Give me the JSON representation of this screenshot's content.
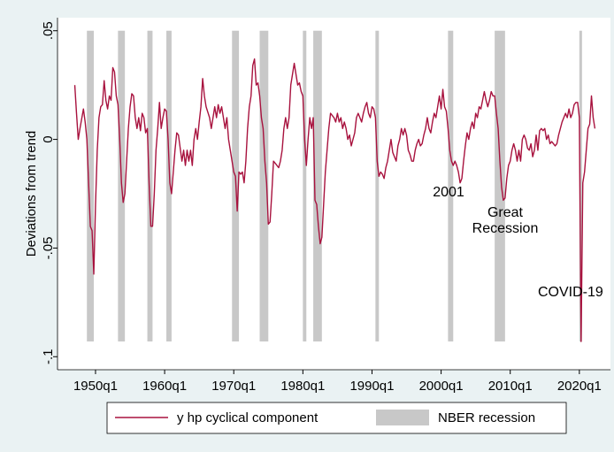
{
  "chart_data": {
    "type": "line",
    "y_label": "Deviations from trend",
    "xlim": [
      1944.5,
      2024.5
    ],
    "ylim": [
      -0.106,
      0.056
    ],
    "xticks": [
      {
        "value": 1950,
        "label": "1950q1"
      },
      {
        "value": 1960,
        "label": "1960q1"
      },
      {
        "value": 1970,
        "label": "1970q1"
      },
      {
        "value": 1980,
        "label": "1980q1"
      },
      {
        "value": 1990,
        "label": "1990q1"
      },
      {
        "value": 2000,
        "label": "2000q1"
      },
      {
        "value": 2010,
        "label": "2010q1"
      },
      {
        "value": 2020,
        "label": "2020q1"
      }
    ],
    "yticks": [
      {
        "value": 0.05,
        "label": ".05"
      },
      0,
      {
        "value": -0.05,
        "label": "-.05"
      },
      {
        "value": -0.1,
        "label": "-.1"
      }
    ],
    "grid": false,
    "legend": "bottom",
    "series": [
      {
        "name": "y hp cyclical component",
        "color": "#a8123e",
        "x": [
          1947.0,
          1947.25,
          1947.5,
          1947.75,
          1948.25,
          1948.5,
          1948.75,
          1949.0,
          1949.25,
          1949.5,
          1949.75,
          1950.0,
          1950.25,
          1950.5,
          1950.75,
          1951.0,
          1951.25,
          1951.5,
          1951.75,
          1952.0,
          1952.25,
          1952.5,
          1952.75,
          1953.0,
          1953.25,
          1953.5,
          1953.75,
          1954.0,
          1954.25,
          1954.5,
          1954.75,
          1955.0,
          1955.25,
          1955.5,
          1955.75,
          1956.0,
          1956.25,
          1956.5,
          1956.75,
          1957.0,
          1957.25,
          1957.5,
          1957.75,
          1958.0,
          1958.25,
          1958.5,
          1958.75,
          1959.0,
          1959.25,
          1959.5,
          1959.75,
          1960.0,
          1960.25,
          1960.5,
          1960.75,
          1961.0,
          1961.25,
          1961.5,
          1961.75,
          1962.0,
          1962.5,
          1962.75,
          1963.0,
          1963.25,
          1963.5,
          1963.75,
          1964.0,
          1964.25,
          1964.5,
          1964.75,
          1965.0,
          1965.25,
          1965.5,
          1965.75,
          1966.0,
          1966.5,
          1966.75,
          1967.0,
          1967.25,
          1967.5,
          1967.75,
          1968.0,
          1968.25,
          1968.5,
          1968.75,
          1969.0,
          1969.25,
          1969.5,
          1969.75,
          1970.0,
          1970.25,
          1970.5,
          1970.75,
          1971.0,
          1971.25,
          1971.5,
          1971.75,
          1972.0,
          1972.25,
          1972.5,
          1972.75,
          1973.0,
          1973.25,
          1973.5,
          1973.75,
          1974.0,
          1974.25,
          1974.5,
          1974.75,
          1975.0,
          1975.25,
          1975.5,
          1975.75,
          1976.0,
          1976.5,
          1976.75,
          1977.0,
          1977.25,
          1977.5,
          1977.75,
          1978.0,
          1978.25,
          1978.5,
          1978.75,
          1979.0,
          1979.25,
          1979.5,
          1979.75,
          1980.0,
          1980.25,
          1980.5,
          1980.75,
          1981.0,
          1981.25,
          1981.5,
          1981.75,
          1982.0,
          1982.25,
          1982.5,
          1982.75,
          1983.0,
          1983.25,
          1983.5,
          1983.75,
          1984.0,
          1984.5,
          1984.75,
          1985.0,
          1985.25,
          1985.5,
          1985.75,
          1986.0,
          1986.25,
          1986.5,
          1986.75,
          1987.0,
          1987.25,
          1987.5,
          1987.75,
          1988.0,
          1988.25,
          1988.5,
          1988.75,
          1989.0,
          1989.25,
          1989.5,
          1989.75,
          1990.0,
          1990.25,
          1990.5,
          1990.75,
          1991.0,
          1991.25,
          1991.5,
          1991.75,
          1992.0,
          1992.25,
          1992.5,
          1992.75,
          1993.0,
          1993.25,
          1993.5,
          1993.75,
          1994.0,
          1994.25,
          1994.5,
          1994.75,
          1995.0,
          1995.25,
          1995.5,
          1995.75,
          1996.0,
          1996.25,
          1996.5,
          1996.75,
          1997.0,
          1997.25,
          1997.5,
          1997.75,
          1998.0,
          1998.25,
          1998.5,
          1998.75,
          1999.0,
          1999.25,
          1999.5,
          1999.75,
          2000.0,
          2000.25,
          2000.5,
          2000.75,
          2001.0,
          2001.25,
          2001.5,
          2001.75,
          2002.0,
          2002.25,
          2002.5,
          2002.75,
          2003.0,
          2003.25,
          2003.5,
          2003.75,
          2004.0,
          2004.25,
          2004.5,
          2004.75,
          2005.0,
          2005.25,
          2005.5,
          2005.75,
          2006.0,
          2006.25,
          2006.5,
          2006.75,
          2007.0,
          2007.25,
          2007.5,
          2007.75,
          2008.0,
          2008.25,
          2008.5,
          2008.75,
          2009.0,
          2009.25,
          2009.5,
          2009.75,
          2010.0,
          2010.25,
          2010.5,
          2010.75,
          2011.0,
          2011.25,
          2011.5,
          2011.75,
          2012.0,
          2012.25,
          2012.5,
          2012.75,
          2013.0,
          2013.25,
          2013.5,
          2013.75,
          2014.0,
          2014.25,
          2014.5,
          2014.75,
          2015.0,
          2015.25,
          2015.5,
          2015.75,
          2016.0,
          2016.5,
          2016.75,
          2017.0,
          2017.25,
          2017.5,
          2017.75,
          2018.0,
          2018.25,
          2018.5,
          2018.75,
          2019.0,
          2019.25,
          2019.5,
          2019.75,
          2020.0,
          2020.25,
          2020.5,
          2020.75,
          2021.0,
          2021.25,
          2021.5,
          2021.75,
          2022.0,
          2022.25
        ],
        "values": [
          0.025,
          0.012,
          0.0,
          0.005,
          0.014,
          0.008,
          0.0,
          -0.02,
          -0.04,
          -0.042,
          -0.062,
          -0.03,
          -0.005,
          0.01,
          0.015,
          0.016,
          0.027,
          0.018,
          0.014,
          0.02,
          0.018,
          0.033,
          0.031,
          0.02,
          0.016,
          0.0,
          -0.02,
          -0.029,
          -0.025,
          -0.01,
          0.005,
          0.015,
          0.021,
          0.02,
          0.01,
          0.005,
          0.01,
          0.004,
          0.012,
          0.01,
          0.003,
          0.005,
          -0.02,
          -0.04,
          -0.04,
          -0.025,
          -0.005,
          0.005,
          0.017,
          0.005,
          0.01,
          0.014,
          0.013,
          0.0,
          -0.02,
          -0.025,
          -0.015,
          -0.005,
          0.003,
          0.002,
          -0.01,
          -0.005,
          -0.012,
          -0.005,
          -0.01,
          -0.005,
          -0.012,
          0.0,
          0.005,
          0.0,
          0.008,
          0.015,
          0.028,
          0.02,
          0.015,
          0.01,
          0.005,
          0.01,
          0.015,
          0.01,
          0.016,
          0.012,
          0.015,
          0.01,
          0.005,
          0.01,
          0.0,
          -0.005,
          -0.01,
          -0.015,
          -0.017,
          -0.033,
          -0.015,
          -0.016,
          -0.015,
          -0.02,
          -0.01,
          0.005,
          0.015,
          0.02,
          0.034,
          0.037,
          0.025,
          0.026,
          0.02,
          0.01,
          0.005,
          -0.01,
          -0.02,
          -0.039,
          -0.038,
          -0.025,
          -0.01,
          -0.011,
          -0.013,
          -0.01,
          -0.005,
          0.005,
          0.01,
          0.005,
          0.01,
          0.025,
          0.03,
          0.035,
          0.03,
          0.025,
          0.026,
          0.022,
          0.02,
          0.0,
          -0.012,
          0.0,
          0.01,
          0.005,
          0.01,
          -0.028,
          -0.03,
          -0.04,
          -0.048,
          -0.045,
          -0.03,
          -0.015,
          -0.005,
          0.005,
          0.012,
          0.01,
          0.008,
          0.012,
          0.008,
          0.01,
          0.005,
          0.008,
          0.005,
          0.0,
          0.002,
          -0.003,
          0.0,
          0.003,
          0.01,
          0.012,
          0.01,
          0.008,
          0.012,
          0.015,
          0.017,
          0.012,
          0.01,
          0.015,
          0.014,
          0.01,
          -0.01,
          -0.017,
          -0.015,
          -0.016,
          -0.018,
          -0.013,
          -0.01,
          -0.005,
          0.0,
          -0.006,
          -0.008,
          -0.01,
          -0.003,
          0.0,
          0.005,
          0.002,
          0.005,
          0.002,
          -0.005,
          -0.007,
          -0.01,
          -0.01,
          -0.005,
          -0.002,
          0.0,
          -0.003,
          -0.002,
          0.002,
          0.005,
          0.01,
          0.005,
          0.003,
          0.008,
          0.012,
          0.01,
          0.015,
          0.02,
          0.014,
          0.023,
          0.015,
          0.013,
          0.005,
          -0.005,
          -0.01,
          -0.012,
          -0.01,
          -0.012,
          -0.015,
          -0.02,
          -0.018,
          -0.01,
          -0.003,
          0.003,
          0.0,
          0.005,
          0.008,
          0.005,
          0.012,
          0.01,
          0.015,
          0.014,
          0.018,
          0.022,
          0.018,
          0.015,
          0.018,
          0.022,
          0.02,
          0.02,
          0.012,
          0.005,
          -0.01,
          -0.022,
          -0.028,
          -0.027,
          -0.018,
          -0.012,
          -0.01,
          -0.005,
          -0.002,
          -0.005,
          -0.01,
          -0.005,
          -0.01,
          0.0,
          0.002,
          0.0,
          -0.004,
          -0.005,
          -0.002,
          -0.008,
          -0.005,
          0.002,
          -0.005,
          0.004,
          0.005,
          0.004,
          0.005,
          0.0,
          0.002,
          -0.002,
          -0.001,
          -0.003,
          -0.002,
          0.002,
          0.005,
          0.008,
          0.01,
          0.012,
          0.01,
          0.014,
          0.01,
          0.012,
          0.016,
          0.017,
          0.017,
          0.01,
          -0.093,
          -0.02,
          -0.015,
          -0.005,
          0.005,
          0.007,
          0.02,
          0.01,
          0.005
        ]
      }
    ],
    "recessions": {
      "name": "NBER recession",
      "color": "#c8c8c8",
      "top": 0.05,
      "bottom": -0.093,
      "spans": [
        [
          1948.75,
          1949.75
        ],
        [
          1953.25,
          1954.25
        ],
        [
          1957.5,
          1958.25
        ],
        [
          1960.25,
          1961.0
        ],
        [
          1969.75,
          1970.75
        ],
        [
          1973.75,
          1975.0
        ],
        [
          1980.0,
          1980.5
        ],
        [
          1981.5,
          1982.75
        ],
        [
          1990.5,
          1991.0
        ],
        [
          2001.0,
          2001.75
        ],
        [
          2007.75,
          2009.25
        ],
        [
          2020.0,
          2020.25
        ]
      ]
    },
    "annotations": [
      [
        "2001"
      ],
      [
        "Great",
        "Recession"
      ],
      [
        "COVID-19"
      ]
    ]
  }
}
